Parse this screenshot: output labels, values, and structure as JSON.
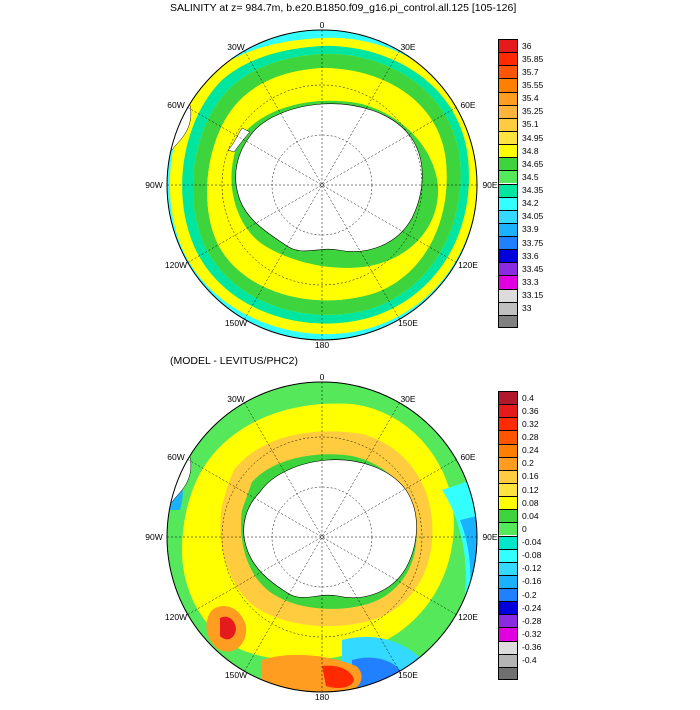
{
  "panel1": {
    "title": "SALINITY at z= 984.7m, b.e20.B1850.f09_g16.pi_control.all.125 [105-126]",
    "lon_labels": [
      "0",
      "30E",
      "60E",
      "90E",
      "120E",
      "150E",
      "180",
      "150W",
      "120W",
      "90W",
      "60W",
      "30W"
    ],
    "colorbar": {
      "labels": [
        "36",
        "35.85",
        "35.7",
        "35.55",
        "35.4",
        "35.25",
        "35.1",
        "34.95",
        "34.8",
        "34.65",
        "34.5",
        "34.35",
        "34.2",
        "34.05",
        "33.9",
        "33.75",
        "33.6",
        "33.45",
        "33.3",
        "33.15",
        "33"
      ],
      "colors": [
        "#e41a1c",
        "#ff2a00",
        "#ff5500",
        "#ff7f00",
        "#ff9d20",
        "#ffb43c",
        "#ffcc40",
        "#ffe340",
        "#ffff00",
        "#3ed43e",
        "#55e85a",
        "#00e6a0",
        "#33ffff",
        "#33d9ff",
        "#1ab2ff",
        "#2080ff",
        "#0000dd",
        "#8a2be2",
        "#e000e0",
        "#dcdcdc",
        "#c0c0c0",
        "#808080"
      ]
    }
  },
  "panel2": {
    "title": "(MODEL - LEVITUS/PHC2)",
    "lon_labels": [
      "0",
      "30E",
      "60E",
      "90E",
      "120E",
      "150E",
      "180",
      "150W",
      "120W",
      "90W",
      "60W",
      "30W"
    ],
    "colorbar": {
      "labels": [
        "0.4",
        "0.36",
        "0.32",
        "0.28",
        "0.24",
        "0.2",
        "0.16",
        "0.12",
        "0.08",
        "0.04",
        "0",
        "-0.04",
        "-0.08",
        "-0.12",
        "-0.16",
        "-0.2",
        "-0.24",
        "-0.28",
        "-0.32",
        "-0.36",
        "-0.4"
      ],
      "colors": [
        "#b2182b",
        "#e41a1c",
        "#ff2a00",
        "#ff5500",
        "#ff7f00",
        "#ff9d20",
        "#ffcc40",
        "#ffe340",
        "#ffff00",
        "#3ed43e",
        "#55e85a",
        "#00e6c8",
        "#33ffff",
        "#33d9ff",
        "#1ab2ff",
        "#2080ff",
        "#0000dd",
        "#8a2be2",
        "#e000e0",
        "#dcdcdc",
        "#b4b4b4",
        "#707070"
      ]
    }
  }
}
